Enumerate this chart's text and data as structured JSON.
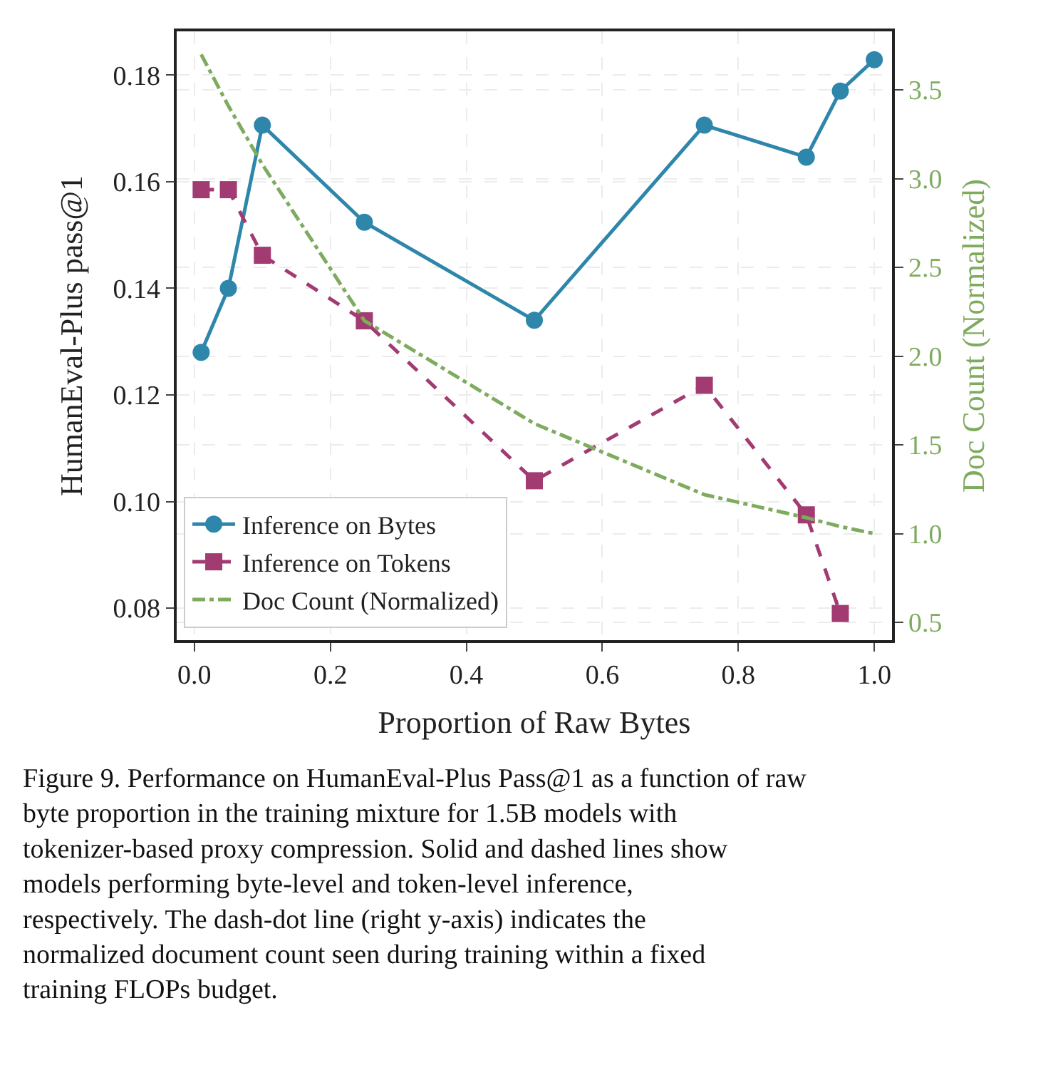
{
  "chart_data": {
    "type": "line",
    "xlabel": "Proportion of Raw Bytes",
    "ylabel": "HumanEval-Plus pass@1",
    "y2label": "Doc Count (Normalized)",
    "x": [
      0.01,
      0.05,
      0.1,
      0.25,
      0.5,
      0.75,
      0.9,
      0.95,
      1.0
    ],
    "series": [
      {
        "name": "Inference on Bytes",
        "color": "#2e86ab",
        "values": [
          0.128,
          0.14,
          0.1706,
          0.1524,
          0.134,
          0.1706,
          0.1646,
          0.177,
          0.1829
        ],
        "marker": "circle",
        "line_style": "solid"
      },
      {
        "name": "Inference on Tokens",
        "color": "#a23b72",
        "x": [
          0.01,
          0.05,
          0.1,
          0.25,
          0.5,
          0.75,
          0.9,
          0.95
        ],
        "values": [
          0.1585,
          0.1585,
          0.1462,
          0.1339,
          0.1039,
          0.1218,
          0.0975,
          0.079
        ],
        "marker": "square",
        "line_style": "dashed"
      },
      {
        "name": "Doc Count (Normalized)",
        "color": "#7fab5f",
        "axis": "y2",
        "values": [
          3.7,
          3.41,
          3.08,
          2.2,
          1.62,
          1.22,
          1.09,
          1.04,
          1.0
        ],
        "marker": "none",
        "line_style": "dashdot"
      }
    ],
    "xlim": [
      -0.026,
      1.026
    ],
    "xticks": [
      {
        "value": 0,
        "label": "0.0"
      },
      0.2,
      0.4,
      0.6,
      0.8,
      {
        "value": 1,
        "label": "1.0"
      }
    ],
    "ylim": [
      0.074,
      0.1882
    ],
    "yticks": [
      0.08,
      {
        "value": 0.1,
        "label": "0.10"
      },
      0.12,
      0.14,
      0.16,
      0.18
    ],
    "y2lim": [
      0.4,
      3.83
    ],
    "y2ticks": [
      0.5,
      {
        "value": 1,
        "label": "1.0"
      },
      1.5,
      {
        "value": 2,
        "label": "2.0"
      },
      2.5,
      {
        "value": 3,
        "label": "3.0"
      },
      3.5
    ],
    "grid": true,
    "legend": "bottom left",
    "annotations": [
      "Figure 9. Performance on HumanEval-Plus Pass@1 as a function of raw byte proportion in the training mixture for 1.5B models with tokenizer-based proxy compression. Solid and dashed lines show models performing byte-level and token-level inference, respectively. The dash-dot line (right y-axis) indicates the normalized document count seen during training within a fixed training FLOPs budget."
    ]
  }
}
